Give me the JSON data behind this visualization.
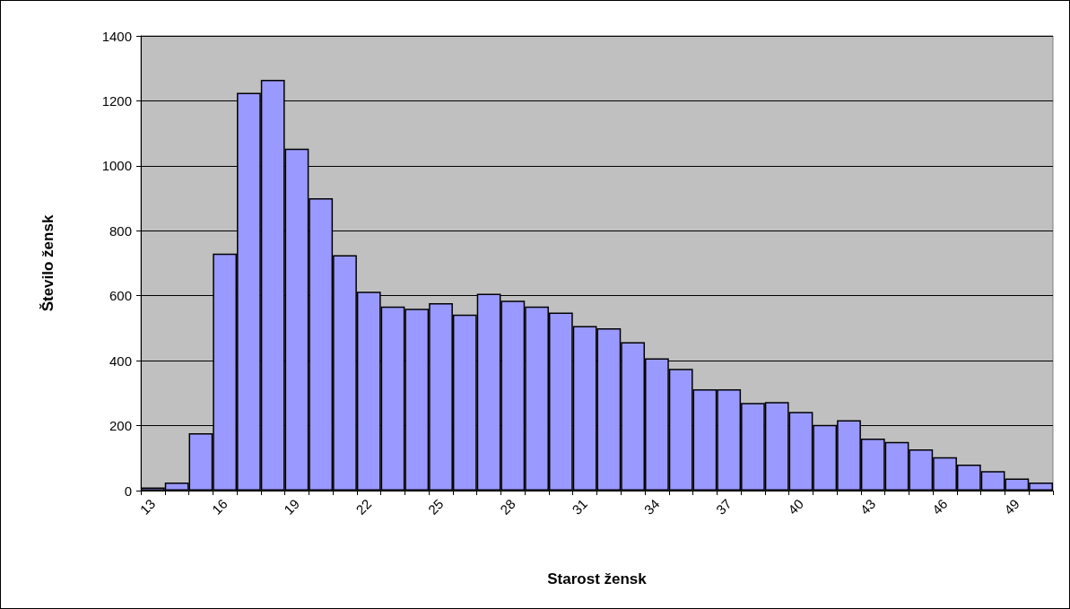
{
  "chart_data": {
    "type": "bar",
    "xlabel": "Starost žensk",
    "ylabel": "Število žensk",
    "categories": [
      "13",
      null,
      null,
      "16",
      null,
      null,
      "19",
      null,
      null,
      "22",
      null,
      null,
      "25",
      null,
      null,
      "28",
      null,
      null,
      "31",
      null,
      null,
      "34",
      null,
      null,
      "37",
      null,
      null,
      "40",
      null,
      null,
      "43",
      null,
      null,
      "46",
      null,
      null,
      "49",
      null
    ],
    "values": [
      10,
      25,
      177,
      730,
      1225,
      1265,
      1053,
      900,
      725,
      612,
      567,
      560,
      577,
      542,
      606,
      585,
      567,
      548,
      507,
      500,
      457,
      407,
      375,
      312,
      312,
      270,
      273,
      242,
      202,
      217,
      160,
      150,
      127,
      103,
      80,
      60,
      37,
      25
    ],
    "color": "#9999ff",
    "ylim": [
      0,
      1400
    ],
    "yticks": [
      0,
      200,
      400,
      600,
      800,
      1000,
      1200,
      1400
    ],
    "grid": "y"
  }
}
